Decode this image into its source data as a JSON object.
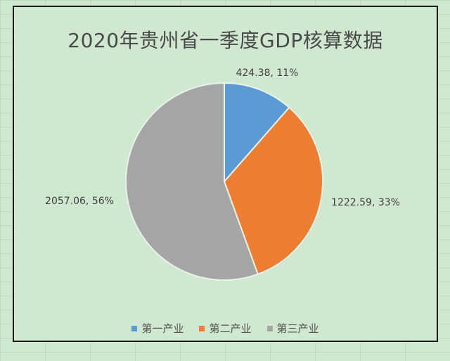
{
  "chart_data": {
    "type": "pie",
    "title": "2020年贵州省一季度GDP核算数据",
    "categories": [
      "第一产业",
      "第二产业",
      "第三产业"
    ],
    "values": [
      424.38,
      1222.59,
      2057.06
    ],
    "percent_labels": [
      "11%",
      "33%",
      "56%"
    ],
    "data_labels": [
      "424.38, 11%",
      "1222.59, 33%",
      "2057.06, 56%"
    ],
    "colors": [
      "#5b9bd5",
      "#ed7d31",
      "#a5a5a5"
    ],
    "legend_position": "bottom",
    "start_angle": "12 o'clock, clockwise"
  }
}
